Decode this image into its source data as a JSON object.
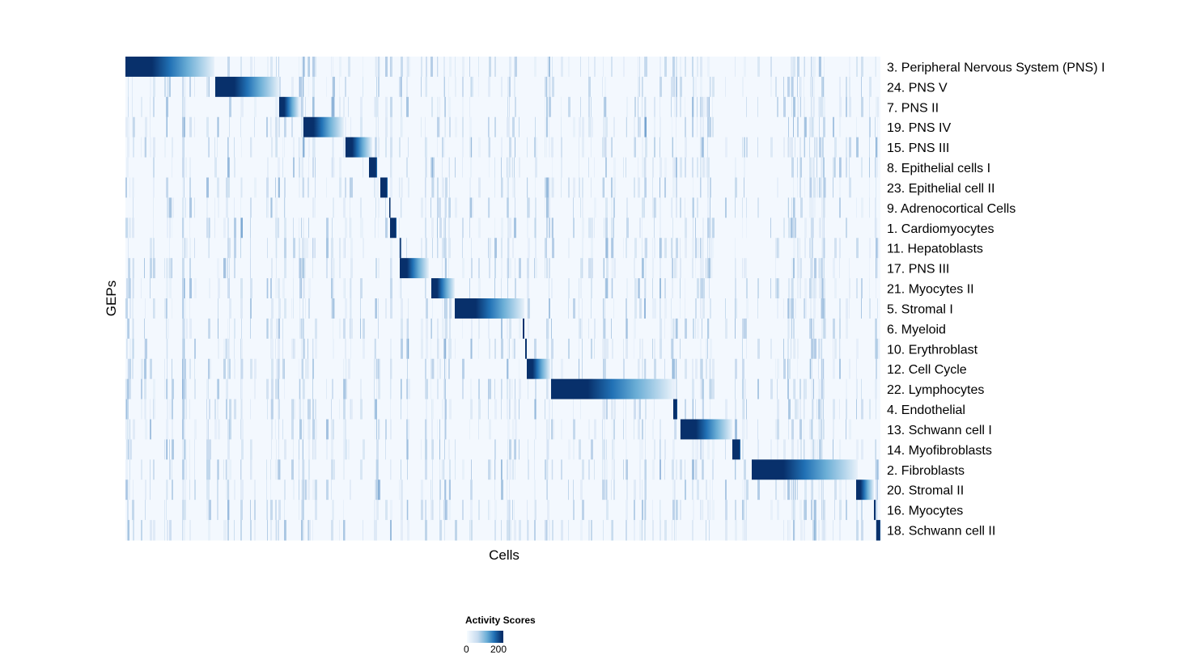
{
  "chart_data": {
    "type": "heatmap",
    "xlabel": "Cells",
    "ylabel": "GEPs",
    "n_cells": 933,
    "colorscale": {
      "title": "Activity Scores",
      "min": 0,
      "max": 200,
      "tick_labels": [
        "0",
        "200"
      ],
      "low_color": "#f7fbff",
      "high_color": "#08306b"
    },
    "rows": [
      {
        "label": "3. Peripheral Nervous System (PNS) I",
        "high_cells": [
          0,
          110
        ]
      },
      {
        "label": "24. PNS V",
        "high_cells": [
          111,
          190
        ]
      },
      {
        "label": "7. PNS II",
        "high_cells": [
          190,
          215
        ]
      },
      {
        "label": "19. PNS IV",
        "high_cells": [
          220,
          270
        ]
      },
      {
        "label": "15. PNS III",
        "high_cells": [
          272,
          305
        ]
      },
      {
        "label": "8. Epithelial cells I",
        "high_cells": [
          301,
          311
        ]
      },
      {
        "label": "23. Epithelial cell II",
        "high_cells": [
          315,
          324
        ]
      },
      {
        "label": "9. Adrenocortical Cells",
        "high_cells": [
          326,
          327
        ]
      },
      {
        "label": "1. Cardiomyocytes",
        "high_cells": [
          327,
          335
        ]
      },
      {
        "label": "11. Hepatoblasts",
        "high_cells": [
          339,
          340
        ]
      },
      {
        "label": "17. PNS III",
        "high_cells": [
          339,
          375
        ]
      },
      {
        "label": "21. Myocytes II",
        "high_cells": [
          378,
          407
        ]
      },
      {
        "label": "5. Stromal I",
        "high_cells": [
          407,
          493
        ]
      },
      {
        "label": "6. Myeloid",
        "high_cells": [
          491,
          493
        ]
      },
      {
        "label": "10. Erythroblast",
        "high_cells": [
          494,
          496
        ]
      },
      {
        "label": "12. Cell Cycle",
        "high_cells": [
          496,
          525
        ]
      },
      {
        "label": "22. Lymphocytes",
        "high_cells": [
          526,
          677
        ]
      },
      {
        "label": "4. Endothelial",
        "high_cells": [
          677,
          682
        ]
      },
      {
        "label": "13. Schwann cell I",
        "high_cells": [
          686,
          750
        ]
      },
      {
        "label": "14. Myofibroblasts",
        "high_cells": [
          750,
          760
        ]
      },
      {
        "label": "2. Fibroblasts",
        "high_cells": [
          774,
          905
        ]
      },
      {
        "label": "20. Stromal II",
        "high_cells": [
          903,
          925
        ]
      },
      {
        "label": "16. Myocytes",
        "high_cells": [
          925,
          927
        ]
      },
      {
        "label": "18. Schwann cell II",
        "high_cells": [
          928,
          933
        ]
      }
    ]
  }
}
